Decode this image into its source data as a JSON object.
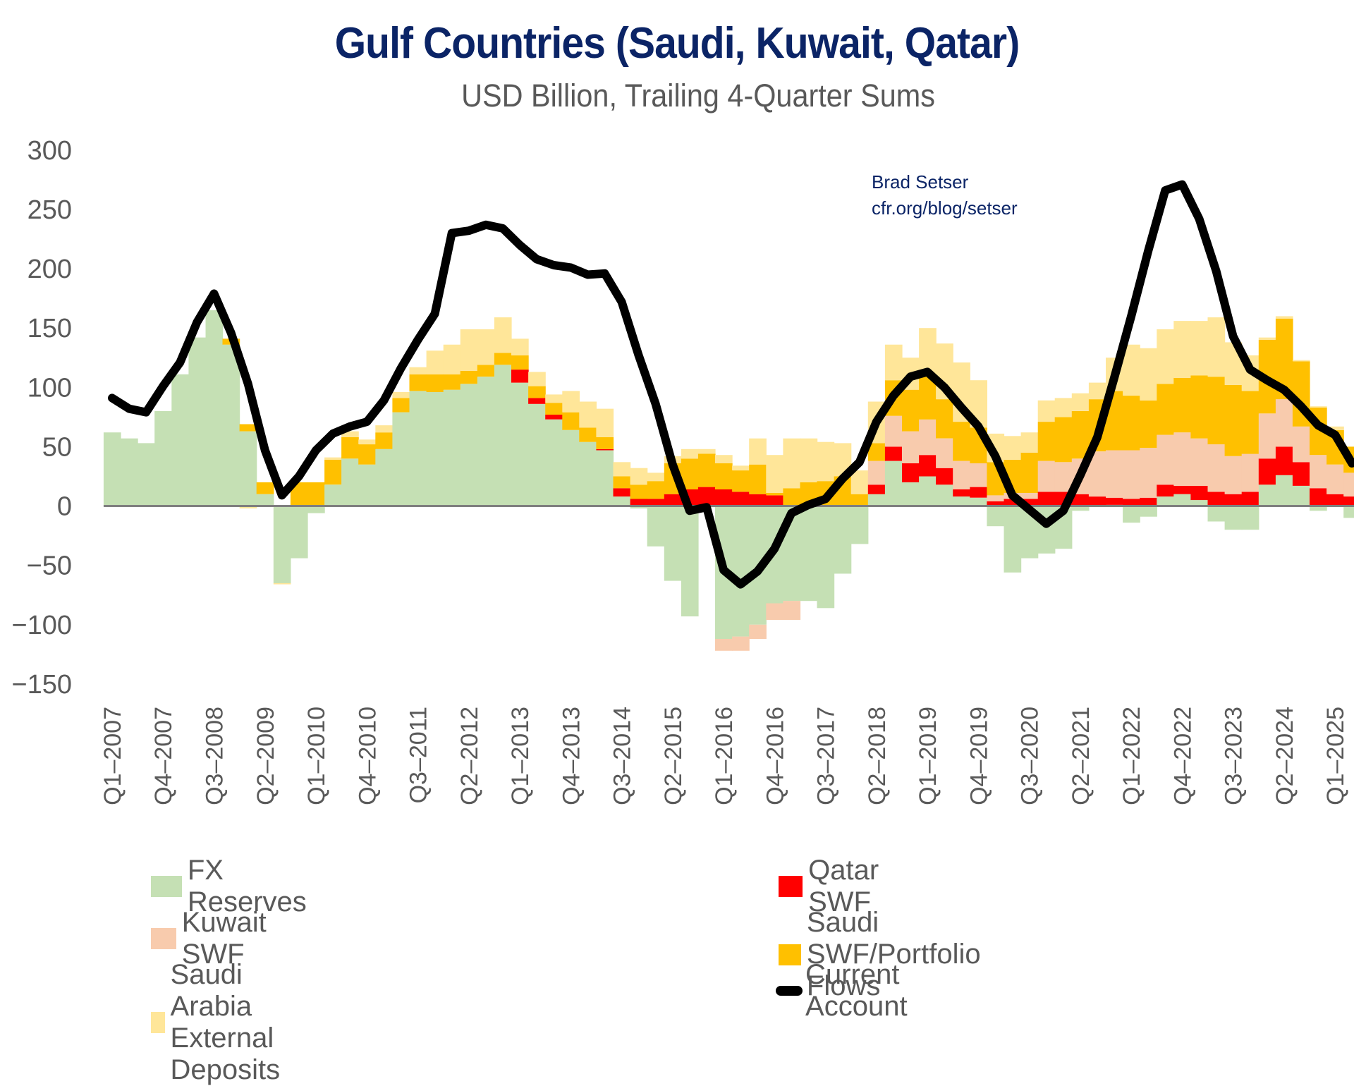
{
  "chart_data": {
    "type": "bar",
    "subtype": "stacked-bar-with-line",
    "title": "Gulf Countries (Saudi, Kuwait, Qatar)",
    "subtitle": "USD Billion, Trailing 4-Quarter Sums",
    "annotation": [
      "Brad Setser",
      "cfr.org/blog/setser"
    ],
    "xlabel": "",
    "ylabel": "",
    "ylim": [
      -150,
      300
    ],
    "yticks": [
      300,
      250,
      200,
      150,
      100,
      50,
      0,
      -50,
      -100,
      -150
    ],
    "grid": false,
    "legend_position": "bottom",
    "categories": [
      "Q1-2007",
      "Q2-2007",
      "Q3-2007",
      "Q4-2007",
      "Q1-2008",
      "Q2-2008",
      "Q3-2008",
      "Q4-2008",
      "Q1-2009",
      "Q2-2009",
      "Q3-2009",
      "Q4-2009",
      "Q1-2010",
      "Q2-2010",
      "Q3-2010",
      "Q4-2010",
      "Q1-2011",
      "Q2-2011",
      "Q3-2011",
      "Q4-2011",
      "Q1-2012",
      "Q2-2012",
      "Q3-2012",
      "Q4-2012",
      "Q1-2013",
      "Q2-2013",
      "Q3-2013",
      "Q4-2013",
      "Q1-2014",
      "Q2-2014",
      "Q3-2014",
      "Q4-2014",
      "Q1-2015",
      "Q2-2015",
      "Q3-2015",
      "Q4-2015",
      "Q1-2016",
      "Q2-2016",
      "Q3-2016",
      "Q4-2016",
      "Q1-2017",
      "Q2-2017",
      "Q3-2017",
      "Q4-2017",
      "Q1-2018",
      "Q2-2018",
      "Q3-2018",
      "Q4-2018",
      "Q1-2019",
      "Q2-2019",
      "Q3-2019",
      "Q4-2019",
      "Q1-2020",
      "Q2-2020",
      "Q3-2020",
      "Q4-2020",
      "Q1-2021",
      "Q2-2021",
      "Q3-2021",
      "Q4-2021",
      "Q1-2022",
      "Q2-2022",
      "Q3-2022",
      "Q4-2022",
      "Q1-2023",
      "Q2-2023",
      "Q3-2023",
      "Q4-2023",
      "Q1-2024",
      "Q2-2024",
      "Q3-2024",
      "Q4-2024",
      "Q1-2025",
      "Q2-2025"
    ],
    "tick_labels": [
      "Q1-2007",
      "Q4-2007",
      "Q3-2008",
      "Q2-2009",
      "Q1-2010",
      "Q4-2010",
      "Q3-2011",
      "Q2-2012",
      "Q1-2013",
      "Q4-2013",
      "Q3-2014",
      "Q2-2015",
      "Q1-2016",
      "Q4-2016",
      "Q3-2017",
      "Q2-2018",
      "Q1-2019",
      "Q4-2019",
      "Q3-2020",
      "Q2-2021",
      "Q1-2022",
      "Q4-2022",
      "Q3-2023",
      "Q2-2024",
      "Q1-2025"
    ],
    "series": [
      {
        "name": "FX Reserves",
        "type": "bar",
        "color": "#c5e0b4",
        "values": [
          62,
          57,
          53,
          80,
          111,
          142,
          165,
          136,
          63,
          10,
          -65,
          -44,
          -6,
          18,
          40,
          35,
          48,
          79,
          97,
          96,
          98,
          103,
          109,
          119,
          104,
          86,
          73,
          64,
          54,
          47,
          8,
          -2,
          -34,
          -63,
          -93,
          -1,
          -112,
          -110,
          -100,
          -82,
          -80,
          -80,
          -86,
          -57,
          -32,
          10,
          38,
          20,
          25,
          18,
          8,
          7,
          -17,
          -56,
          -44,
          -40,
          -36,
          -4,
          0,
          1,
          -14,
          -9,
          8,
          10,
          5,
          -13,
          -20,
          -20,
          18,
          26,
          17,
          -4,
          0,
          -10
        ]
      },
      {
        "name": "Qatar SWF",
        "type": "bar",
        "color": "#ff0000",
        "values": [
          0,
          0,
          0,
          0,
          0,
          0,
          0,
          0,
          0,
          0,
          0,
          0,
          0,
          0,
          0,
          0,
          0,
          0,
          0,
          0,
          0,
          0,
          0,
          0,
          11,
          5,
          4,
          0,
          0,
          1,
          7,
          6,
          6,
          10,
          14,
          16,
          14,
          12,
          10,
          9,
          0,
          0,
          0,
          0,
          0,
          8,
          12,
          16,
          18,
          14,
          6,
          9,
          4,
          6,
          6,
          12,
          12,
          10,
          8,
          6,
          6,
          7,
          10,
          7,
          12,
          12,
          10,
          12,
          22,
          24,
          20,
          15,
          10,
          8
        ]
      },
      {
        "name": "Kuwait SWF",
        "type": "bar",
        "color": "#f8cbad",
        "values": [
          0,
          0,
          0,
          0,
          0,
          0,
          0,
          0,
          0,
          0,
          0,
          0,
          0,
          0,
          0,
          0,
          0,
          0,
          0,
          0,
          0,
          0,
          0,
          0,
          0,
          0,
          0,
          0,
          0,
          0,
          0,
          0,
          0,
          0,
          0,
          0,
          -10,
          -12,
          -12,
          -14,
          -16,
          0,
          0,
          0,
          0,
          20,
          26,
          27,
          30,
          25,
          24,
          20,
          5,
          5,
          5,
          26,
          25,
          30,
          38,
          40,
          41,
          42,
          42,
          45,
          40,
          40,
          32,
          32,
          38,
          40,
          30,
          28,
          25,
          20
        ]
      },
      {
        "name": "Saudi SWF/Portfolio Flows",
        "type": "bar",
        "color": "#ffc000",
        "values": [
          0,
          0,
          0,
          0,
          0,
          0,
          0,
          5,
          6,
          10,
          0,
          20,
          20,
          21,
          18,
          17,
          14,
          12,
          14,
          15,
          13,
          11,
          10,
          10,
          12,
          10,
          10,
          15,
          12,
          10,
          10,
          12,
          15,
          26,
          26,
          28,
          22,
          18,
          25,
          2,
          15,
          20,
          21,
          25,
          10,
          15,
          30,
          35,
          37,
          33,
          33,
          30,
          28,
          28,
          34,
          33,
          38,
          40,
          44,
          50,
          46,
          40,
          43,
          46,
          53,
          57,
          60,
          53,
          62,
          68,
          55,
          40,
          29,
          22
        ]
      },
      {
        "name": "Saudi Arabia External Deposits",
        "type": "bar",
        "color": "#ffe699",
        "values": [
          0,
          0,
          0,
          0,
          0,
          0,
          0,
          0,
          -2,
          0,
          -1,
          0,
          0,
          2,
          5,
          4,
          6,
          5,
          6,
          20,
          25,
          35,
          30,
          30,
          14,
          12,
          7,
          18,
          22,
          24,
          12,
          14,
          7,
          6,
          8,
          4,
          7,
          4,
          22,
          32,
          42,
          37,
          33,
          28,
          20,
          35,
          30,
          27,
          40,
          47,
          50,
          40,
          24,
          20,
          17,
          18,
          16,
          15,
          14,
          28,
          43,
          44,
          46,
          48,
          46,
          50,
          36,
          30,
          2,
          2,
          1,
          1,
          3,
          0
        ]
      },
      {
        "name": "Current Account",
        "type": "line",
        "color": "#000000",
        "values": [
          91,
          82,
          79,
          101,
          121,
          155,
          179,
          146,
          103,
          47,
          9,
          25,
          47,
          61,
          67,
          71,
          89,
          116,
          140,
          162,
          230,
          232,
          237,
          234,
          220,
          208,
          203,
          201,
          195,
          196,
          172,
          127,
          86,
          35,
          -4,
          -1,
          -54,
          -66,
          -55,
          -36,
          -6,
          1,
          6,
          23,
          37,
          71,
          93,
          109,
          113,
          100,
          83,
          67,
          42,
          9,
          -3,
          -15,
          -4,
          26,
          58,
          108,
          160,
          215,
          266,
          271,
          242,
          198,
          143,
          115,
          106,
          98,
          84,
          68,
          60,
          36
        ]
      }
    ],
    "extra_negative_stack": {
      "Saudi Arabia External Deposits": {
        "note": "small negative portions shown below FX reserves",
        "values_at": {
          "Q2-2009": -2,
          "Q3-2020": -5,
          "Q4-2020": -15,
          "Q1-2024": -2,
          "Q2-2024": -5,
          "Q3-2024": -7
        }
      }
    }
  },
  "legend": {
    "items": [
      {
        "label": "FX Reserves",
        "color": "#c5e0b4",
        "kind": "swatch"
      },
      {
        "label": "Qatar SWF",
        "color": "#ff0000",
        "kind": "swatch"
      },
      {
        "label": "Kuwait SWF",
        "color": "#f8cbad",
        "kind": "swatch"
      },
      {
        "label": "Saudi SWF/Portfolio Flows",
        "color": "#ffc000",
        "kind": "swatch"
      },
      {
        "label": "Saudi Arabia External Deposits",
        "color": "#ffe699",
        "kind": "swatch"
      },
      {
        "label": "Current Account",
        "color": "#000000",
        "kind": "line"
      }
    ]
  }
}
